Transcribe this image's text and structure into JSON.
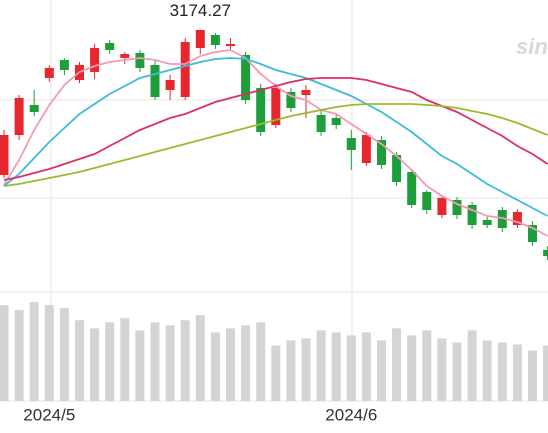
{
  "chart_data": {
    "type": "candlestick",
    "annotation": "3174.27",
    "watermark": "sina",
    "categories": [
      null,
      null,
      null,
      "2024/5",
      null,
      null,
      null,
      null,
      null,
      null,
      null,
      null,
      null,
      null,
      null,
      null,
      null,
      null,
      null,
      null,
      null,
      null,
      null,
      "2024/6",
      null,
      null,
      null,
      null,
      null,
      null,
      null,
      null,
      null,
      null,
      null,
      null,
      null
    ],
    "open": [
      3029,
      3069,
      3099,
      3126,
      3144,
      3124,
      3132,
      3161,
      3146,
      3151,
      3139,
      3114,
      3107,
      3156,
      3169,
      3158,
      3149,
      3116,
      3079,
      3112,
      3109,
      3089,
      3086,
      3066,
      3041,
      3064,
      3049,
      3032,
      3012,
      2989,
      3004,
      2999,
      2984,
      2994,
      2979,
      2979,
      2954
    ],
    "high": [
      3074,
      3109,
      3114,
      3139,
      3146,
      3142,
      3160,
      3164,
      3152,
      3154,
      3144,
      3129,
      3166,
      3174.27,
      3171,
      3166,
      3152,
      3120,
      3120,
      3116,
      3119,
      3094,
      3090,
      3074,
      3072,
      3068,
      3052,
      3035,
      3014,
      3009,
      3007,
      3002,
      2987,
      2997,
      2995,
      2983,
      2958
    ],
    "low": [
      3026,
      3064,
      3088,
      3122,
      3129,
      3121,
      3125,
      3150,
      3140,
      3132,
      3104,
      3104,
      3104,
      3150,
      3155,
      3154,
      3100,
      3068,
      3076,
      3092,
      3086,
      3068,
      3075,
      3034,
      3038,
      3035,
      3018,
      2996,
      2990,
      2986,
      2985,
      2975,
      2976,
      2972,
      2976,
      2958,
      2944
    ],
    "close": [
      3069,
      3106,
      3092,
      3136,
      3134,
      3139,
      3156,
      3154,
      3150,
      3136,
      3107,
      3124,
      3162,
      3174,
      3159,
      3160,
      3104,
      3072,
      3116,
      3096,
      3114,
      3072,
      3079,
      3054,
      3069,
      3039,
      3022,
      2999,
      2994,
      3006,
      2989,
      2979,
      2979,
      2976,
      2992,
      2962,
      2948
    ],
    "up_color": "#e8262d",
    "down_color": "#1e9e3a",
    "ylim": [
      2934,
      3204
    ],
    "series": [
      {
        "color": "#f29ab6",
        "values": [
          3019,
          3044,
          3074,
          3099,
          3119,
          3132,
          3138,
          3142,
          3144,
          3146,
          3144,
          3140,
          3140,
          3148,
          3152,
          3154,
          3146,
          3130,
          3118,
          3108,
          3104,
          3094,
          3090,
          3080,
          3070,
          3060,
          3048,
          3034,
          3018,
          3008,
          3000,
          2994,
          2988,
          2986,
          2982,
          2976,
          2968
        ]
      },
      {
        "color": "#3bbcd9",
        "values": [
          3018,
          3030,
          3046,
          3062,
          3076,
          3090,
          3100,
          3110,
          3118,
          3126,
          3130,
          3134,
          3138,
          3142,
          3145,
          3146,
          3145,
          3140,
          3134,
          3130,
          3126,
          3120,
          3114,
          3108,
          3100,
          3092,
          3082,
          3072,
          3060,
          3048,
          3040,
          3030,
          3020,
          3012,
          3004,
          2996,
          2988
        ]
      },
      {
        "color": "#dd2f63",
        "values": [
          3024,
          3027,
          3031,
          3035,
          3040,
          3045,
          3050,
          3058,
          3066,
          3074,
          3080,
          3086,
          3090,
          3096,
          3102,
          3106,
          3110,
          3114,
          3118,
          3122,
          3125,
          3126,
          3126,
          3126,
          3124,
          3120,
          3116,
          3112,
          3104,
          3098,
          3092,
          3084,
          3076,
          3068,
          3058,
          3050,
          3040
        ]
      },
      {
        "color": "#9bbb2e",
        "values": [
          3018,
          3020,
          3023,
          3026,
          3029,
          3032,
          3036,
          3040,
          3044,
          3048,
          3052,
          3056,
          3060,
          3064,
          3068,
          3072,
          3076,
          3080,
          3084,
          3088,
          3091,
          3094,
          3097,
          3099,
          3100,
          3100,
          3100,
          3100,
          3099,
          3098,
          3096,
          3093,
          3090,
          3086,
          3081,
          3075,
          3069
        ]
      }
    ],
    "volume": {
      "color": "#d4d4d4",
      "ylim": [
        0,
        105
      ],
      "values": [
        95,
        90,
        98,
        95,
        92,
        80,
        72,
        78,
        82,
        70,
        78,
        75,
        80,
        85,
        68,
        72,
        75,
        78,
        55,
        60,
        62,
        70,
        68,
        65,
        68,
        60,
        72,
        65,
        70,
        62,
        58,
        70,
        60,
        58,
        56,
        50,
        55
      ]
    }
  }
}
